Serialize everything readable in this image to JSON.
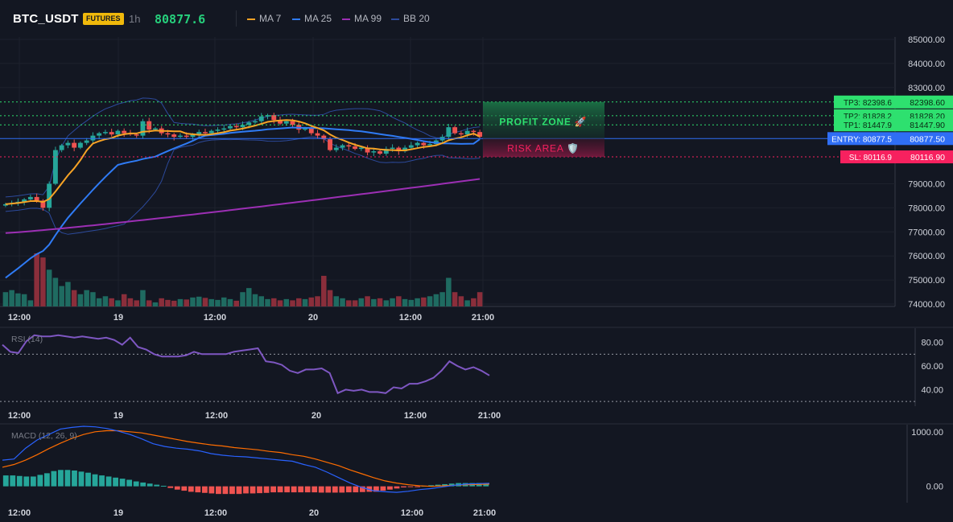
{
  "header": {
    "symbol": "BTC_USDT",
    "badge": "FUTURES",
    "timeframe": "1h",
    "last_price": "80877.6",
    "legend": [
      {
        "label": "MA 7",
        "color": "#f7a325"
      },
      {
        "label": "MA 25",
        "color": "#2f7bf5"
      },
      {
        "label": "MA 99",
        "color": "#9c2fb4"
      },
      {
        "label": "BB 20",
        "color": "#2c4a9c"
      }
    ]
  },
  "colors": {
    "up": "#26a69a",
    "down": "#ef5350",
    "tp": "#2ee06f",
    "entry": "#2f6ef5",
    "sl": "#f7215f",
    "rsi": "#7e57c2",
    "macd": "#2962ff",
    "signal": "#ff6d00"
  },
  "chart_data": [
    {
      "type": "candlestick",
      "title": "BTC_USDT",
      "x_ticks": [
        "12:00",
        "19",
        "12:00",
        "20",
        "12:00",
        "21:00"
      ],
      "y_ticks": [
        "85000.00",
        "84000.00",
        "83000.00",
        "79000.00",
        "78000.00",
        "77000.00",
        "76000.00",
        "75000.00",
        "74000.00"
      ],
      "ylim": [
        73900,
        85100
      ],
      "closes": [
        78150,
        78200,
        78250,
        78350,
        78450,
        78300,
        78000,
        79000,
        80400,
        80600,
        80700,
        80500,
        80700,
        80800,
        81000,
        81100,
        81150,
        81050,
        81200,
        81100,
        81050,
        81000,
        81600,
        81250,
        81300,
        81100,
        81050,
        80950,
        81000,
        80950,
        81050,
        81150,
        81100,
        81200,
        81250,
        81300,
        81400,
        81350,
        81450,
        81550,
        81600,
        81800,
        81850,
        81650,
        81500,
        81600,
        81450,
        81250,
        81300,
        81100,
        81000,
        80850,
        80400,
        80500,
        80600,
        80550,
        80450,
        80500,
        80300,
        80350,
        80250,
        80450,
        80500,
        80350,
        80500,
        80600,
        80700,
        80600,
        80650,
        80800,
        80950,
        81350,
        81100,
        81050,
        81200,
        81150,
        80950
      ],
      "volumes": [
        3.5,
        4,
        3.2,
        3,
        1.5,
        13,
        12,
        9,
        7,
        5,
        6,
        4,
        3,
        4,
        3.5,
        2,
        2.5,
        2,
        1.5,
        3,
        2,
        1.5,
        4,
        1.5,
        1,
        2,
        1.6,
        1.4,
        1.8,
        1.7,
        2.2,
        2.4,
        2.1,
        1.8,
        1.6,
        2.2,
        1.8,
        1.4,
        3.5,
        4.5,
        3,
        2.5,
        1.8,
        2,
        1.5,
        1.8,
        1.5,
        2,
        1.8,
        2.2,
        2.5,
        7.5,
        4,
        2.5,
        2,
        1.5,
        1.5,
        2,
        2.5,
        1.8,
        2,
        1.5,
        2,
        2.5,
        1.8,
        1.6,
        2,
        2.2,
        2.5,
        3,
        3.5,
        7,
        3.5,
        2.5,
        1.5,
        2,
        3.5
      ],
      "ma7_end": 80960,
      "ma25_end": 80850,
      "ma99": {
        "start": 76950,
        "end": 79200
      },
      "levels": [
        {
          "label": "TP3: 82398.6",
          "price": "82398.60",
          "value": 82398.6,
          "kind": "tp"
        },
        {
          "label": "TP2: 81828.2",
          "price": "81828.20",
          "value": 81828.2,
          "kind": "tp"
        },
        {
          "label": "TP1: 81447.9",
          "price": "81447.90",
          "value": 81447.9,
          "kind": "tp"
        },
        {
          "label": "ENTRY: 80877.5",
          "price": "80877.50",
          "value": 80877.5,
          "kind": "entry"
        },
        {
          "label": "SL: 80116.9",
          "price": "80116.90",
          "value": 80116.9,
          "kind": "sl"
        }
      ],
      "zones": {
        "profit": "PROFIT ZONE 🚀",
        "risk": "RISK AREA 🛡️"
      }
    },
    {
      "type": "line",
      "title": "RSI (14)",
      "y_ticks": [
        "80.00",
        "60.00",
        "40.00"
      ],
      "ylim": [
        26,
        92
      ],
      "overbought": 70,
      "oversold": 30,
      "values": [
        78,
        72,
        71,
        81,
        86,
        85,
        85,
        86,
        85,
        84,
        85,
        84,
        83,
        84,
        82,
        78,
        84,
        76,
        74,
        70,
        68,
        68,
        68,
        69,
        72,
        70,
        70,
        70,
        70,
        72,
        73,
        74,
        75,
        64,
        63,
        61,
        56,
        54,
        57,
        57,
        58,
        54,
        37,
        40,
        39,
        40,
        38,
        38,
        37,
        42,
        41,
        45,
        45,
        47,
        50,
        56,
        64,
        60,
        57,
        59,
        56,
        52
      ]
    },
    {
      "type": "line+bar",
      "title": "MACD (12, 26, 9)",
      "y_ticks": [
        "1000.00",
        "0.00"
      ],
      "ylim": [
        -300,
        1130
      ],
      "macd": [
        480,
        500,
        700,
        850,
        950,
        1050,
        1080,
        1100,
        1090,
        1060,
        1010,
        950,
        870,
        780,
        730,
        700,
        680,
        650,
        600,
        570,
        550,
        540,
        520,
        500,
        480,
        460,
        400,
        350,
        260,
        160,
        60,
        -20,
        -80,
        -100,
        -110,
        -90,
        -60,
        -40,
        -10,
        20,
        40,
        50,
        55
      ],
      "signal": [
        350,
        400,
        480,
        580,
        690,
        790,
        880,
        950,
        1000,
        1020,
        1020,
        1000,
        980,
        940,
        900,
        860,
        820,
        790,
        760,
        740,
        710,
        690,
        670,
        640,
        620,
        580,
        550,
        500,
        440,
        380,
        300,
        230,
        160,
        100,
        60,
        30,
        10,
        0,
        10,
        20,
        30,
        35,
        40
      ],
      "hist": [
        200,
        200,
        190,
        180,
        180,
        210,
        240,
        280,
        300,
        300,
        290,
        270,
        250,
        220,
        200,
        180,
        160,
        140,
        120,
        90,
        70,
        50,
        30,
        10,
        -30,
        -60,
        -80,
        -100,
        -110,
        -120,
        -130,
        -140,
        -140,
        -140,
        -140,
        -130,
        -130,
        -125,
        -120,
        -110,
        -110,
        -110,
        -110,
        -110,
        -110,
        -110,
        -115,
        -115,
        -115,
        -115,
        -110,
        -110,
        -105,
        -100,
        -100,
        -80,
        -60,
        -40,
        -20,
        -10,
        -5,
        10,
        20,
        30,
        40,
        50,
        60,
        60,
        60,
        60,
        50
      ]
    }
  ]
}
